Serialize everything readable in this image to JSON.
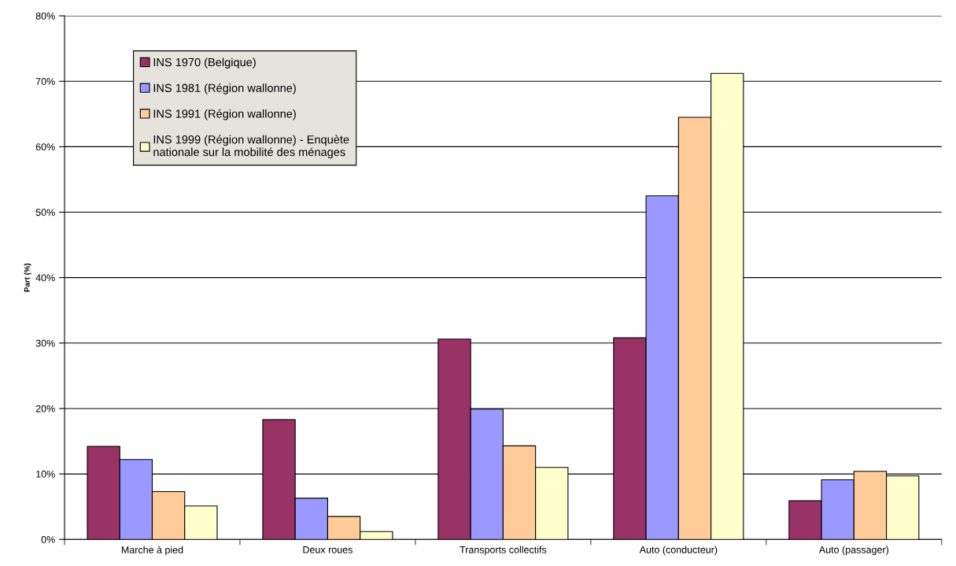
{
  "chart_data": {
    "type": "bar",
    "ylabel": "Part (%)",
    "categories": [
      "Marche à pied",
      "Deux roues",
      "Transports collectifs",
      "Auto (conducteur)",
      "Auto (passager)"
    ],
    "series": [
      {
        "name": "INS 1970 (Belgique)",
        "color": "#993366",
        "values": [
          14.2,
          18.3,
          30.6,
          30.8,
          5.9
        ]
      },
      {
        "name": "INS 1981 (Région wallonne)",
        "color": "#9999ff",
        "values": [
          12.2,
          6.3,
          19.9,
          52.5,
          9.1
        ]
      },
      {
        "name": "INS 1991 (Région wallonne)",
        "color": "#ffcc99",
        "values": [
          7.3,
          3.5,
          14.3,
          64.5,
          10.4
        ]
      },
      {
        "name": "INS 1999 (Région wallonne) - Enquète\nnationale sur la mobilité des ménages",
        "color": "#ffffcc",
        "values": [
          5.1,
          1.2,
          11.0,
          71.2,
          9.7
        ]
      }
    ],
    "ylim": [
      0,
      80
    ],
    "yticks": [
      {
        "value": 0,
        "label": "0%"
      },
      {
        "value": 10,
        "label": "10%"
      },
      {
        "value": 20,
        "label": "20%"
      },
      {
        "value": 30,
        "label": "30%"
      },
      {
        "value": 40,
        "label": "40%"
      },
      {
        "value": 50,
        "label": "50%"
      },
      {
        "value": 60,
        "label": "60%"
      },
      {
        "value": 70,
        "label": "70%"
      },
      {
        "value": 80,
        "label": "80%"
      }
    ],
    "grid": "y",
    "legend": "top left"
  }
}
